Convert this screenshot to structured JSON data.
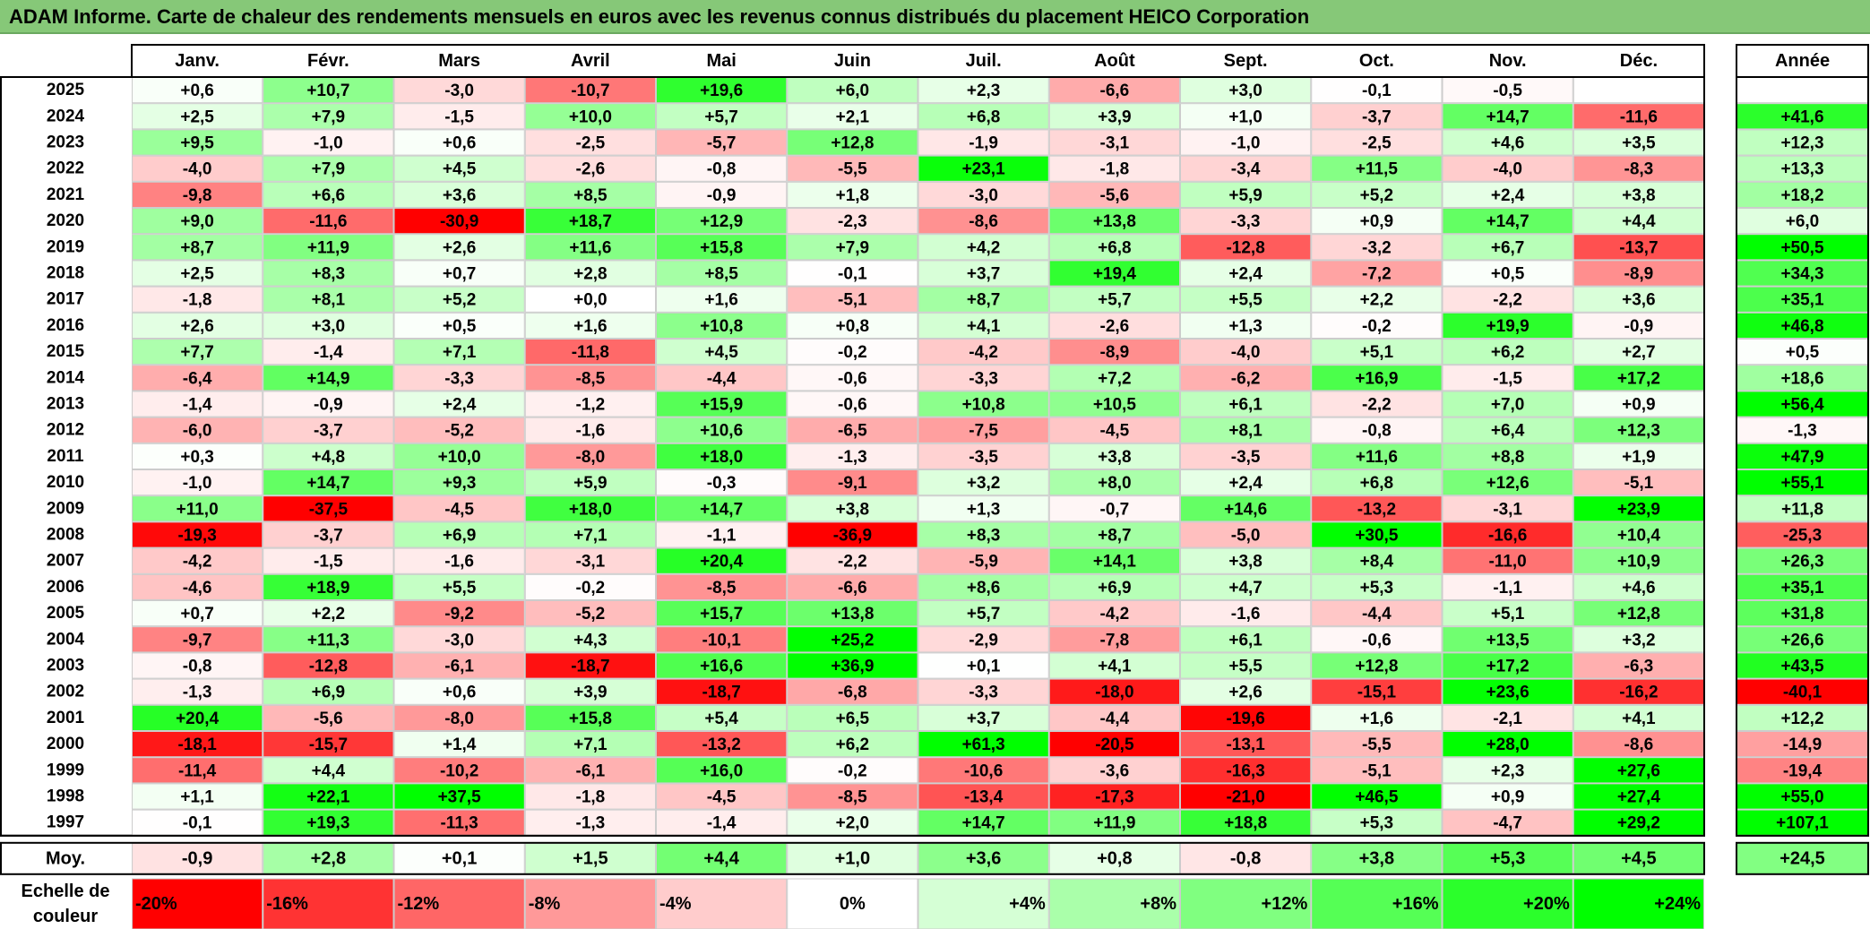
{
  "title": "ADAM Informe. Carte de chaleur des rendements mensuels en euros avec les revenus connus distribués du placement HEICO Corporation",
  "chart_data": {
    "type": "heatmap",
    "months": [
      "Janv.",
      "Févr.",
      "Mars",
      "Avril",
      "Mai",
      "Juin",
      "Juil.",
      "Août",
      "Sept.",
      "Oct.",
      "Nov.",
      "Déc."
    ],
    "year_header": "Année",
    "rows": [
      {
        "year": "2025",
        "values": [
          "+0,6",
          "+10,7",
          "-3,0",
          "-10,7",
          "+19,6",
          "+6,0",
          "+2,3",
          "-6,6",
          "+3,0",
          "-0,1",
          "-0,5",
          ""
        ],
        "annual": ""
      },
      {
        "year": "2024",
        "values": [
          "+2,5",
          "+7,9",
          "-1,5",
          "+10,0",
          "+5,7",
          "+2,1",
          "+6,8",
          "+3,9",
          "+1,0",
          "-3,7",
          "+14,7",
          "-11,6"
        ],
        "annual": "+41,6"
      },
      {
        "year": "2023",
        "values": [
          "+9,5",
          "-1,0",
          "+0,6",
          "-2,5",
          "-5,7",
          "+12,8",
          "-1,9",
          "-3,1",
          "-1,0",
          "-2,5",
          "+4,6",
          "+3,5"
        ],
        "annual": "+12,3"
      },
      {
        "year": "2022",
        "values": [
          "-4,0",
          "+7,9",
          "+4,5",
          "-2,6",
          "-0,8",
          "-5,5",
          "+23,1",
          "-1,8",
          "-3,4",
          "+11,5",
          "-4,0",
          "-8,3"
        ],
        "annual": "+13,3"
      },
      {
        "year": "2021",
        "values": [
          "-9,8",
          "+6,6",
          "+3,6",
          "+8,5",
          "-0,9",
          "+1,8",
          "-3,0",
          "-5,6",
          "+5,9",
          "+5,2",
          "+2,4",
          "+3,8"
        ],
        "annual": "+18,2"
      },
      {
        "year": "2020",
        "values": [
          "+9,0",
          "-11,6",
          "-30,9",
          "+18,7",
          "+12,9",
          "-2,3",
          "-8,6",
          "+13,8",
          "-3,3",
          "+0,9",
          "+14,7",
          "+4,4"
        ],
        "annual": "+6,0"
      },
      {
        "year": "2019",
        "values": [
          "+8,7",
          "+11,9",
          "+2,6",
          "+11,6",
          "+15,8",
          "+7,9",
          "+4,2",
          "+6,8",
          "-12,8",
          "-3,2",
          "+6,7",
          "-13,7"
        ],
        "annual": "+50,5"
      },
      {
        "year": "2018",
        "values": [
          "+2,5",
          "+8,3",
          "+0,7",
          "+2,8",
          "+8,5",
          "-0,1",
          "+3,7",
          "+19,4",
          "+2,4",
          "-7,2",
          "+0,5",
          "-8,9"
        ],
        "annual": "+34,3"
      },
      {
        "year": "2017",
        "values": [
          "-1,8",
          "+8,1",
          "+5,2",
          "+0,0",
          "+1,6",
          "-5,1",
          "+8,7",
          "+5,7",
          "+5,5",
          "+2,2",
          "-2,2",
          "+3,6"
        ],
        "annual": "+35,1"
      },
      {
        "year": "2016",
        "values": [
          "+2,6",
          "+3,0",
          "+0,5",
          "+1,6",
          "+10,8",
          "+0,8",
          "+4,1",
          "-2,6",
          "+1,3",
          "-0,2",
          "+19,9",
          "-0,9"
        ],
        "annual": "+46,8"
      },
      {
        "year": "2015",
        "values": [
          "+7,7",
          "-1,4",
          "+7,1",
          "-11,8",
          "+4,5",
          "-0,2",
          "-4,2",
          "-8,9",
          "-4,0",
          "+5,1",
          "+6,2",
          "+2,7"
        ],
        "annual": "+0,5"
      },
      {
        "year": "2014",
        "values": [
          "-6,4",
          "+14,9",
          "-3,3",
          "-8,5",
          "-4,4",
          "-0,6",
          "-3,3",
          "+7,2",
          "-6,2",
          "+16,9",
          "-1,5",
          "+17,2"
        ],
        "annual": "+18,6"
      },
      {
        "year": "2013",
        "values": [
          "-1,4",
          "-0,9",
          "+2,4",
          "-1,2",
          "+15,9",
          "-0,6",
          "+10,8",
          "+10,5",
          "+6,1",
          "-2,2",
          "+7,0",
          "+0,9"
        ],
        "annual": "+56,4"
      },
      {
        "year": "2012",
        "values": [
          "-6,0",
          "-3,7",
          "-5,2",
          "-1,6",
          "+10,6",
          "-6,5",
          "-7,5",
          "-4,5",
          "+8,1",
          "-0,8",
          "+6,4",
          "+12,3"
        ],
        "annual": "-1,3"
      },
      {
        "year": "2011",
        "values": [
          "+0,3",
          "+4,8",
          "+10,0",
          "-8,0",
          "+18,0",
          "-1,3",
          "-3,5",
          "+3,8",
          "-3,5",
          "+11,6",
          "+8,8",
          "+1,9"
        ],
        "annual": "+47,9"
      },
      {
        "year": "2010",
        "values": [
          "-1,0",
          "+14,7",
          "+9,3",
          "+5,9",
          "-0,3",
          "-9,1",
          "+3,2",
          "+8,0",
          "+2,4",
          "+6,8",
          "+12,6",
          "-5,1"
        ],
        "annual": "+55,1"
      },
      {
        "year": "2009",
        "values": [
          "+11,0",
          "-37,5",
          "-4,5",
          "+18,0",
          "+14,7",
          "+3,8",
          "+1,3",
          "-0,7",
          "+14,6",
          "-13,2",
          "-3,1",
          "+23,9"
        ],
        "annual": "+11,8"
      },
      {
        "year": "2008",
        "values": [
          "-19,3",
          "-3,7",
          "+6,9",
          "+7,1",
          "-1,1",
          "-36,9",
          "+8,3",
          "+8,7",
          "-5,0",
          "+30,5",
          "-16,6",
          "+10,4"
        ],
        "annual": "-25,3"
      },
      {
        "year": "2007",
        "values": [
          "-4,2",
          "-1,5",
          "-1,6",
          "-3,1",
          "+20,4",
          "-2,2",
          "-5,9",
          "+14,1",
          "+3,8",
          "+8,4",
          "-11,0",
          "+10,9"
        ],
        "annual": "+26,3"
      },
      {
        "year": "2006",
        "values": [
          "-4,6",
          "+18,9",
          "+5,5",
          "-0,2",
          "-8,5",
          "-6,6",
          "+8,6",
          "+6,9",
          "+4,7",
          "+5,3",
          "-1,1",
          "+4,6"
        ],
        "annual": "+35,1"
      },
      {
        "year": "2005",
        "values": [
          "+0,7",
          "+2,2",
          "-9,2",
          "-5,2",
          "+15,7",
          "+13,8",
          "+5,7",
          "-4,2",
          "-1,6",
          "-4,4",
          "+5,1",
          "+12,8"
        ],
        "annual": "+31,8"
      },
      {
        "year": "2004",
        "values": [
          "-9,7",
          "+11,3",
          "-3,0",
          "+4,3",
          "-10,1",
          "+25,2",
          "-2,9",
          "-7,8",
          "+6,1",
          "-0,6",
          "+13,5",
          "+3,2"
        ],
        "annual": "+26,6"
      },
      {
        "year": "2003",
        "values": [
          "-0,8",
          "-12,8",
          "-6,1",
          "-18,7",
          "+16,6",
          "+36,9",
          "+0,1",
          "+4,1",
          "+5,5",
          "+12,8",
          "+17,2",
          "-6,3"
        ],
        "annual": "+43,5"
      },
      {
        "year": "2002",
        "values": [
          "-1,3",
          "+6,9",
          "+0,6",
          "+3,9",
          "-18,7",
          "-6,8",
          "-3,3",
          "-18,0",
          "+2,6",
          "-15,1",
          "+23,6",
          "-16,2"
        ],
        "annual": "-40,1"
      },
      {
        "year": "2001",
        "values": [
          "+20,4",
          "-5,6",
          "-8,0",
          "+15,8",
          "+5,4",
          "+6,5",
          "+3,7",
          "-4,4",
          "-19,6",
          "+1,6",
          "-2,1",
          "+4,1"
        ],
        "annual": "+12,2"
      },
      {
        "year": "2000",
        "values": [
          "-18,1",
          "-15,7",
          "+1,4",
          "+7,1",
          "-13,2",
          "+6,2",
          "+61,3",
          "-20,5",
          "-13,1",
          "-5,5",
          "+28,0",
          "-8,6"
        ],
        "annual": "-14,9"
      },
      {
        "year": "1999",
        "values": [
          "-11,4",
          "+4,4",
          "-10,2",
          "-6,1",
          "+16,0",
          "-0,2",
          "-10,6",
          "-3,6",
          "-16,3",
          "-5,1",
          "+2,3",
          "+27,6"
        ],
        "annual": "-19,4"
      },
      {
        "year": "1998",
        "values": [
          "+1,1",
          "+22,1",
          "+37,5",
          "-1,8",
          "-4,5",
          "-8,5",
          "-13,4",
          "-17,3",
          "-21,0",
          "+46,5",
          "+0,9",
          "+27,4"
        ],
        "annual": "+55,0"
      },
      {
        "year": "1997",
        "values": [
          "-0,1",
          "+19,3",
          "-11,3",
          "-1,3",
          "-1,4",
          "+2,0",
          "+14,7",
          "+11,9",
          "+18,8",
          "+5,3",
          "-4,7",
          "+29,2"
        ],
        "annual": "+107,1"
      }
    ],
    "average": {
      "label": "Moy.",
      "values": [
        "-0,9",
        "+2,8",
        "+0,1",
        "+1,5",
        "+4,4",
        "+1,0",
        "+3,6",
        "+0,8",
        "-0,8",
        "+3,8",
        "+5,3",
        "+4,5"
      ],
      "annual": "+24,5"
    },
    "scale": {
      "label_lines": [
        "Echelle de",
        "couleur"
      ],
      "steps": [
        "-20%",
        "-16%",
        "-12%",
        "-8%",
        "-4%",
        "0%",
        "+4%",
        "+8%",
        "+12%",
        "+16%",
        "+20%",
        "+24%"
      ]
    },
    "colors": {
      "max_negative": "#ff0000",
      "neutral": "#ffffff",
      "max_positive": "#00ff00",
      "title_background": "#86c878"
    }
  }
}
